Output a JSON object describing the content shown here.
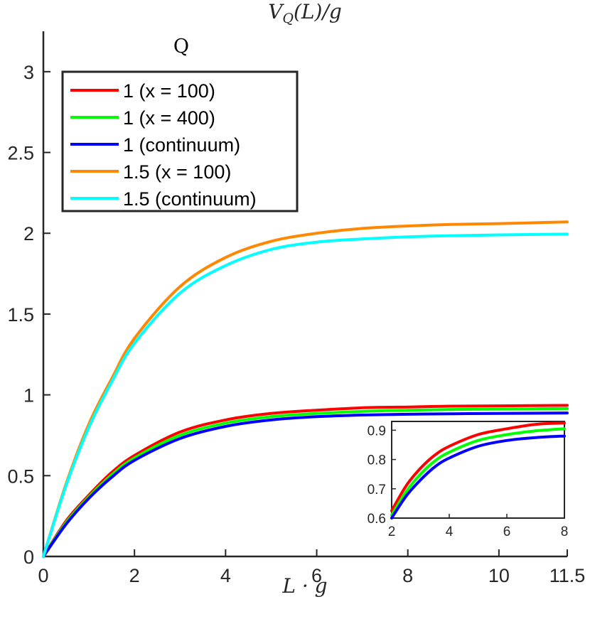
{
  "chart_data": [
    {
      "type": "line",
      "title": "V_Q(L)/g",
      "xlabel": "L · g",
      "ylabel": "",
      "annotation": "Q",
      "xlim": [
        0,
        11.5
      ],
      "ylim": [
        0,
        3.25
      ],
      "xticks": [
        "0",
        "2",
        "4",
        "6",
        "8",
        "10",
        "11.5"
      ],
      "yticks": [
        "0",
        "0.5",
        "1",
        "1.5",
        "2",
        "2.5",
        "3"
      ],
      "legend_position": "top-left",
      "x": [
        0,
        0.5,
        1,
        1.5,
        2,
        3,
        4,
        5,
        6,
        7,
        8,
        9,
        10,
        11.5
      ],
      "series": [
        {
          "name": "1 (x = 100)",
          "color": "#ff0000",
          "values": [
            0,
            0.22,
            0.38,
            0.52,
            0.625,
            0.77,
            0.845,
            0.885,
            0.905,
            0.92,
            0.925,
            0.93,
            0.932,
            0.935
          ]
        },
        {
          "name": "1 (x = 400)",
          "color": "#00ff00",
          "values": [
            0,
            0.21,
            0.37,
            0.505,
            0.61,
            0.75,
            0.825,
            0.865,
            0.885,
            0.898,
            0.905,
            0.91,
            0.912,
            0.915
          ]
        },
        {
          "name": "1 (continuum)",
          "color": "#0000ff",
          "values": [
            0,
            0.2,
            0.36,
            0.49,
            0.595,
            0.73,
            0.805,
            0.845,
            0.865,
            0.875,
            0.88,
            0.883,
            0.885,
            0.888
          ]
        },
        {
          "name": "1.5 (x = 100)",
          "color": "#ff8800",
          "values": [
            0,
            0.45,
            0.82,
            1.1,
            1.35,
            1.67,
            1.85,
            1.95,
            2.0,
            2.03,
            2.045,
            2.055,
            2.06,
            2.07
          ]
        },
        {
          "name": "1.5 (continuum)",
          "color": "#00ffff",
          "values": [
            0,
            0.44,
            0.8,
            1.08,
            1.32,
            1.63,
            1.8,
            1.9,
            1.945,
            1.965,
            1.978,
            1.985,
            1.99,
            1.995
          ]
        }
      ]
    },
    {
      "type": "line",
      "title": "",
      "xlabel": "",
      "ylabel": "",
      "xlim": [
        2,
        8
      ],
      "ylim": [
        0.6,
        0.93
      ],
      "xticks": [
        "2",
        "4",
        "6",
        "8"
      ],
      "yticks": [
        "0.6",
        "0.7",
        "0.8",
        "0.9"
      ],
      "x": [
        2,
        2.5,
        3,
        3.5,
        4,
        5,
        6,
        7,
        8
      ],
      "series": [
        {
          "name": "1 (x = 100)",
          "color": "#ff0000",
          "values": [
            0.625,
            0.71,
            0.77,
            0.815,
            0.845,
            0.885,
            0.905,
            0.92,
            0.925
          ]
        },
        {
          "name": "1 (x = 400)",
          "color": "#00ff00",
          "values": [
            0.61,
            0.69,
            0.75,
            0.795,
            0.825,
            0.865,
            0.885,
            0.898,
            0.905
          ]
        },
        {
          "name": "1 (continuum)",
          "color": "#0000ff",
          "values": [
            0.6,
            0.675,
            0.73,
            0.775,
            0.805,
            0.845,
            0.865,
            0.875,
            0.88
          ]
        }
      ]
    }
  ]
}
